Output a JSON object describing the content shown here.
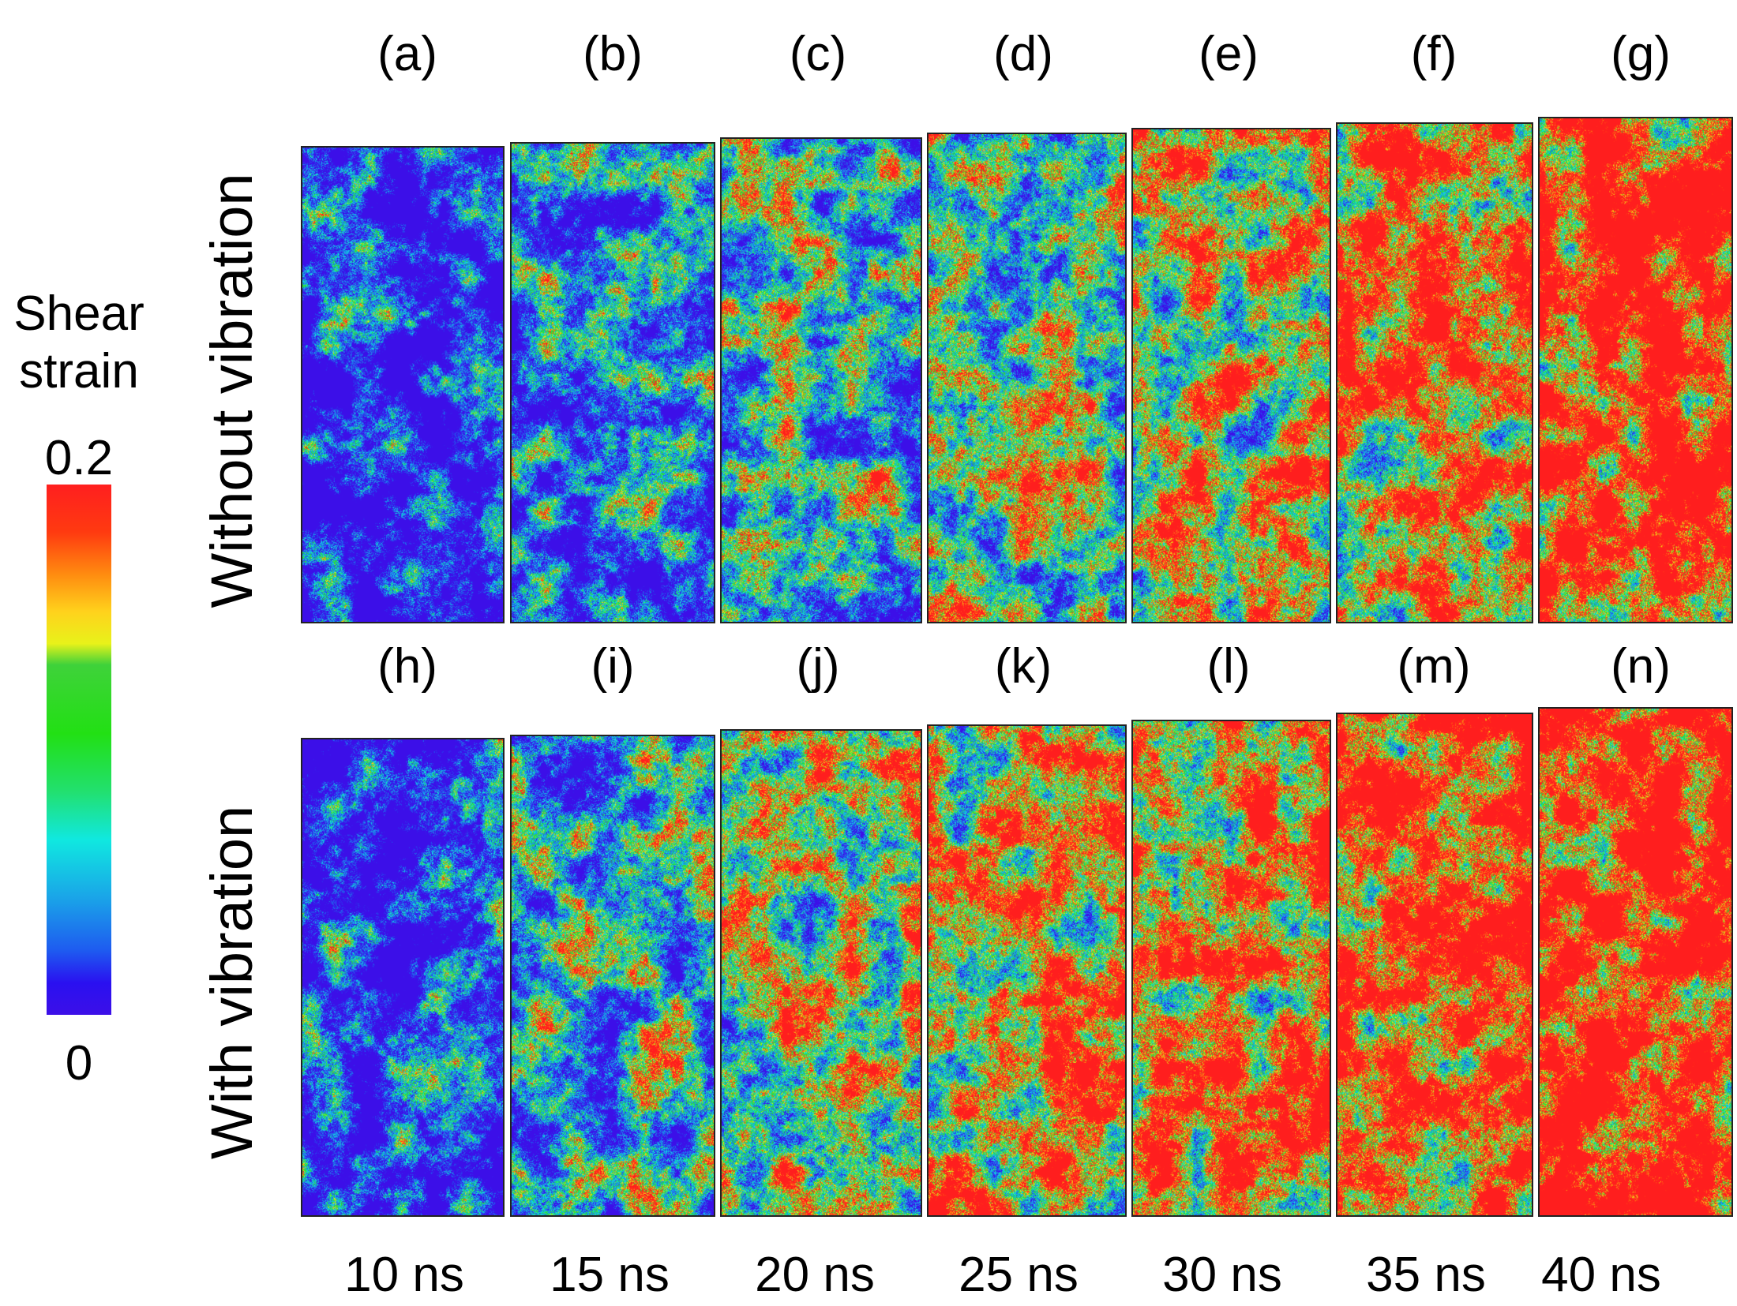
{
  "figure": {
    "row_labels": [
      "Without vibration",
      "With vibration"
    ],
    "colorbar": {
      "title_line1": "Shear",
      "title_line2": "strain",
      "max_label": "0.2",
      "min_label": "0",
      "colormap": "jet (blue-cyan-green-yellow-red)"
    },
    "time_labels": [
      "10 ns",
      "15 ns",
      "20 ns",
      "25 ns",
      "30 ns",
      "35 ns",
      "40 ns"
    ],
    "panels_top": [
      "(a)",
      "(b)",
      "(c)",
      "(d)",
      "(e)",
      "(f)",
      "(g)"
    ],
    "panels_bottom": [
      "(h)",
      "(i)",
      "(j)",
      "(k)",
      "(l)",
      "(m)",
      "(n)"
    ],
    "colors": {
      "low": "#2a10f0",
      "mid_low": "#10e8e0",
      "mid": "#22e014",
      "mid_high": "#e8f21a",
      "high": "#ff1f1f"
    }
  }
}
